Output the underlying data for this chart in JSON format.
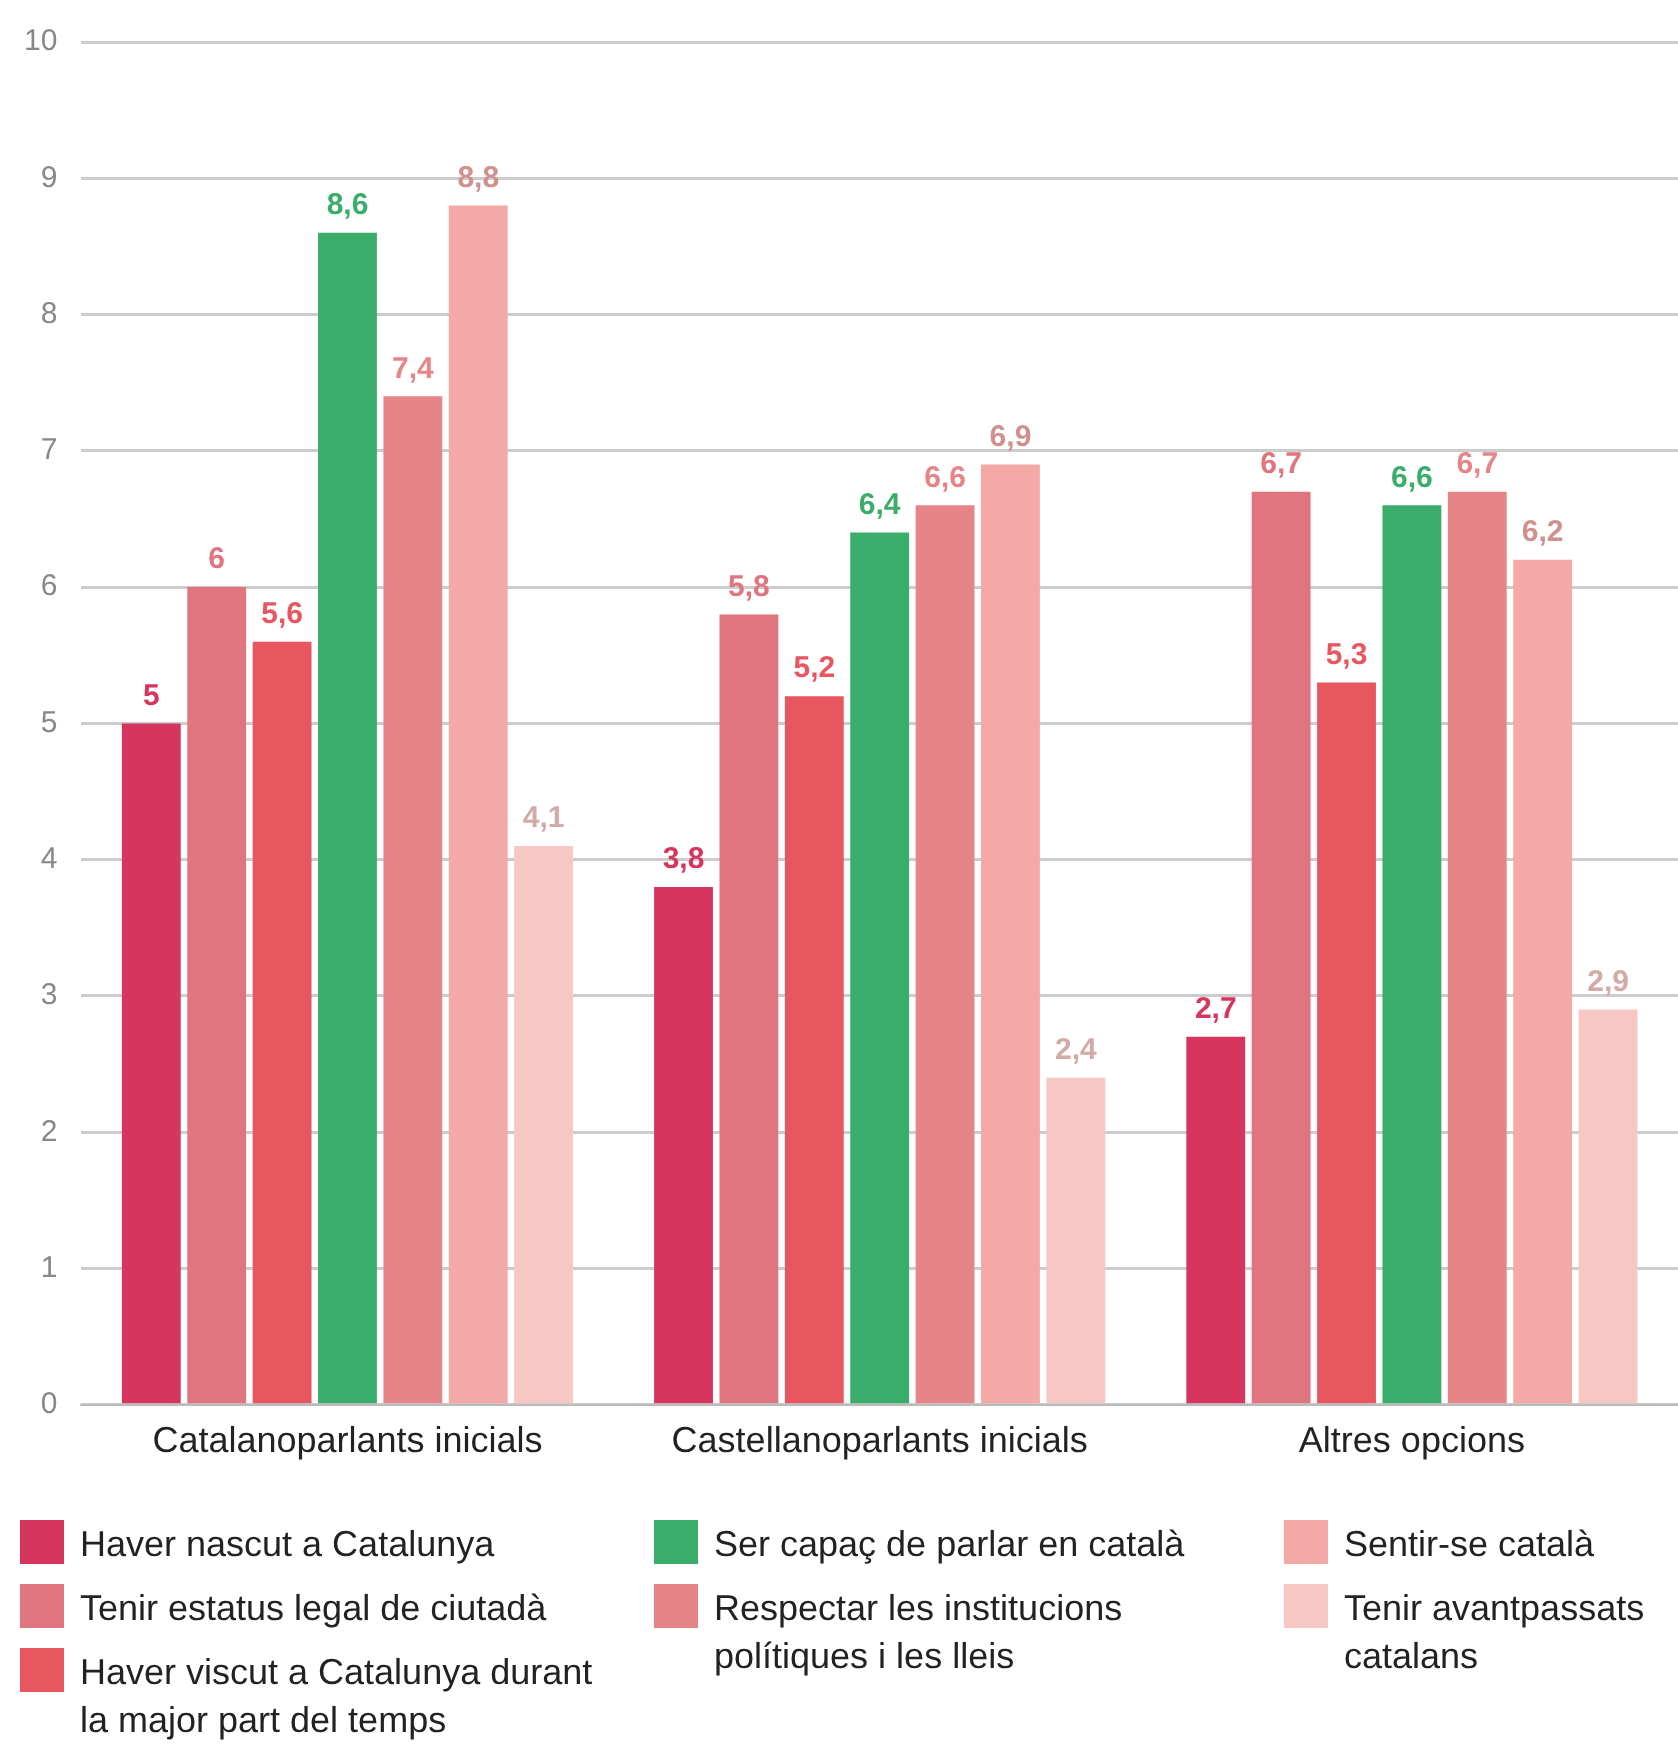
{
  "chart_data": {
    "type": "bar",
    "categories": [
      "Catalanoparlants inicials",
      "Castellanoparlants inicials",
      "Altres opcions"
    ],
    "series": [
      {
        "name": "Haver nascut a Catalunya",
        "color": "#d6365e",
        "values": [
          5,
          3.8,
          2.7
        ],
        "value_labels": [
          "5",
          "3,8",
          "2,7"
        ]
      },
      {
        "name": "Tenir estatus legal de ciutadà",
        "color": "#e07580",
        "values": [
          6,
          5.8,
          6.7
        ],
        "value_labels": [
          "6",
          "5,8",
          "6,7"
        ]
      },
      {
        "name": "Haver viscut a Catalunya durant la major part del temps",
        "color": "#e85660",
        "values": [
          5.6,
          5.2,
          5.3
        ],
        "value_labels": [
          "5,6",
          "5,2",
          "5,3"
        ]
      },
      {
        "name": "Ser capaç de parlar en català",
        "color": "#3aad6a",
        "values": [
          8.6,
          6.4,
          6.6
        ],
        "value_labels": [
          "8,6",
          "6,4",
          "6,6"
        ]
      },
      {
        "name": "Respectar les institucions polítiques i les lleis",
        "color": "#e68587",
        "values": [
          7.4,
          6.6,
          6.7
        ],
        "value_labels": [
          "7,4",
          "6,6",
          "6,7"
        ]
      },
      {
        "name": "Sentir-se català",
        "color": "#f3aaa6",
        "values": [
          8.8,
          6.9,
          6.2
        ],
        "value_labels": [
          "8,8",
          "6,9",
          "6,2"
        ]
      },
      {
        "name": "Tenir avantpassats catalans",
        "color": "#f7c8c3",
        "values": [
          4.1,
          2.4,
          2.9
        ],
        "value_labels": [
          "4,1",
          "2,4",
          "2,9"
        ]
      }
    ],
    "ylim": [
      0,
      10
    ],
    "yticks": [
      0,
      1,
      2,
      3,
      4,
      5,
      6,
      7,
      8,
      9,
      10
    ],
    "grid": "y",
    "legend": "bottom"
  }
}
